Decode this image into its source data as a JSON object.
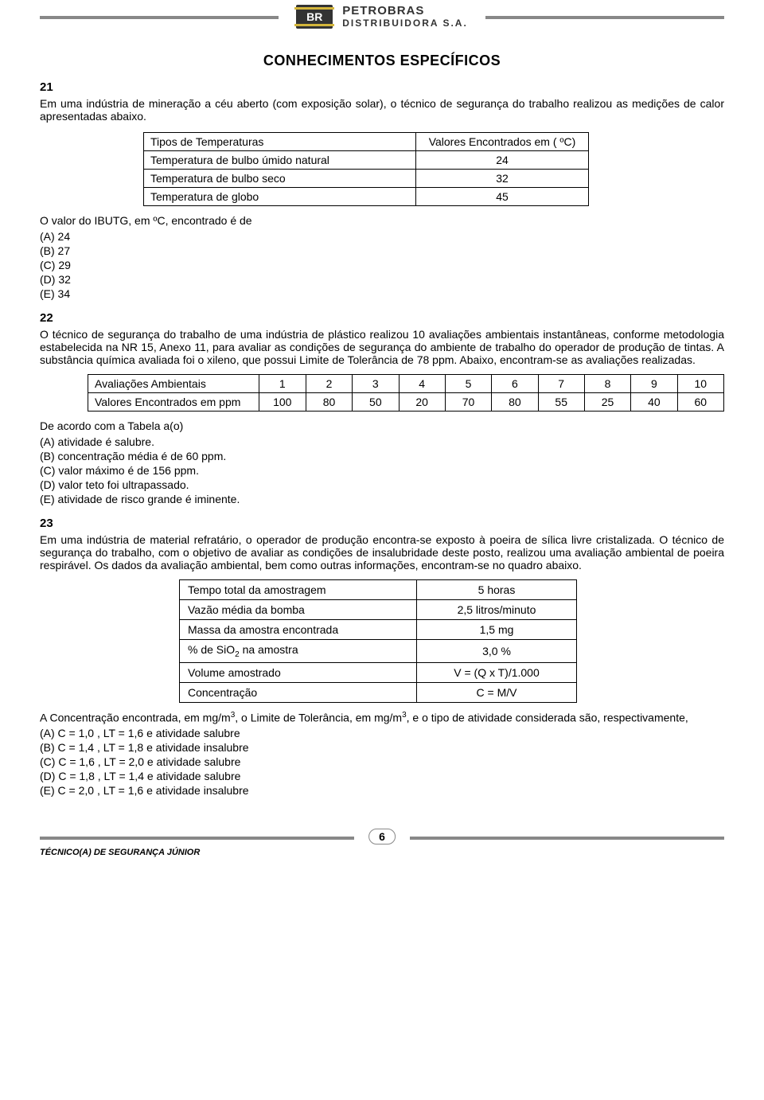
{
  "header": {
    "logo_text": "BR",
    "brand_line1": "PETROBRAS",
    "brand_line2": "DISTRIBUIDORA S.A."
  },
  "section_title": "CONHECIMENTOS ESPECÍFICOS",
  "q21": {
    "num": "21",
    "prompt": "Em uma indústria de mineração a céu aberto (com exposição solar), o técnico de segurança do trabalho realizou as medições de calor apresentadas abaixo.",
    "table": {
      "h1": "Tipos de Temperaturas",
      "h2": "Valores Encontrados em ( ºC)",
      "r1a": "Temperatura de bulbo úmido natural",
      "r1b": "24",
      "r2a": "Temperatura de bulbo seco",
      "r2b": "32",
      "r3a": "Temperatura de globo",
      "r3b": "45"
    },
    "stem": "O valor do IBUTG, em ºC, encontrado é de",
    "opts": {
      "a": "(A) 24",
      "b": "(B) 27",
      "c": "(C) 29",
      "d": "(D) 32",
      "e": "(E) 34"
    }
  },
  "q22": {
    "num": "22",
    "prompt": "O técnico de segurança do trabalho de uma indústria de plástico realizou 10 avaliações ambientais instantâneas, conforme metodologia estabelecida na NR 15, Anexo 11, para avaliar as condições de segurança do ambiente de trabalho do operador de produção de tintas. A substância química avaliada foi o xileno, que possui Limite de Tolerância de 78 ppm. Abaixo, encontram-se as avaliações realizadas.",
    "table": {
      "r1": [
        "Avaliações Ambientais",
        "1",
        "2",
        "3",
        "4",
        "5",
        "6",
        "7",
        "8",
        "9",
        "10"
      ],
      "r2": [
        "Valores Encontrados em ppm",
        "100",
        "80",
        "50",
        "20",
        "70",
        "80",
        "55",
        "25",
        "40",
        "60"
      ]
    },
    "stem": "De acordo com a Tabela a(o)",
    "opts": {
      "a": "(A) atividade é salubre.",
      "b": "(B) concentração média é de 60 ppm.",
      "c": "(C) valor máximo é de 156 ppm.",
      "d": "(D) valor teto foi ultrapassado.",
      "e": "(E) atividade de risco grande é iminente."
    }
  },
  "q23": {
    "num": "23",
    "prompt": "Em uma indústria de material refratário, o operador de produção encontra-se exposto à poeira de sílica livre cristalizada. O técnico de segurança do trabalho, com o objetivo de avaliar as condições de insalubridade deste posto, realizou uma avaliação ambiental de poeira respirável. Os dados da avaliação ambiental, bem como outras informações, encontram-se no quadro abaixo.",
    "table": {
      "r1a": "Tempo total da amostragem",
      "r1b": "5 horas",
      "r2a": "Vazão média da bomba",
      "r2b": "2,5 litros/minuto",
      "r3a": "Massa da amostra encontrada",
      "r3b": "1,5 mg",
      "r4a_pre": "% de SiO",
      "r4a_sub": "2",
      "r4a_post": " na amostra",
      "r4b": "3,0 %",
      "r5a": "Volume amostrado",
      "r5b": "V = (Q x T)/1.000",
      "r6a": "Concentração",
      "r6b": "C = M/V"
    },
    "stem_pre": "A Concentração encontrada, em mg/m",
    "stem_mid": ", o Limite de Tolerância, em mg/m",
    "stem_post": ", e o tipo de atividade considerada são, respectivamente,",
    "opts": {
      "a": "(A) C = 1,0 , LT = 1,6 e atividade salubre",
      "b": "(B) C = 1,4 , LT = 1,8 e atividade insalubre",
      "c": "(C) C = 1,6 , LT = 2,0 e atividade salubre",
      "d": "(D) C = 1,8 , LT = 1,4 e atividade salubre",
      "e": "(E) C = 2,0 , LT = 1,6 e atividade insalubre"
    }
  },
  "footer": {
    "role": "TÉCNICO(A) DE SEGURANÇA JÚNIOR",
    "page": "6"
  }
}
